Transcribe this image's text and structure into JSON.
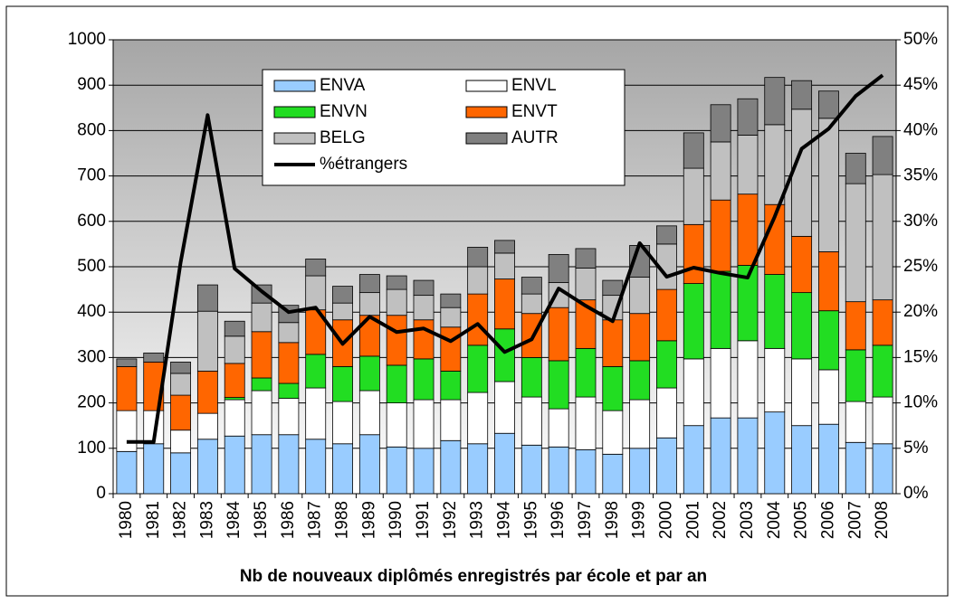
{
  "chart_data": {
    "type": "bar",
    "stacked": true,
    "x_axis_label": "Nb de nouveaux diplômés enregistrés par école et par an",
    "categories": [
      "1980",
      "1981",
      "1982",
      "1983",
      "1984",
      "1985",
      "1986",
      "1987",
      "1988",
      "1989",
      "1990",
      "1991",
      "1992",
      "1993",
      "1994",
      "1995",
      "1996",
      "1997",
      "1998",
      "1999",
      "2000",
      "2001",
      "2002",
      "2003",
      "2004",
      "2005",
      "2006",
      "2007",
      "2008"
    ],
    "series": [
      {
        "name": "ENVA",
        "color": "#99ccff",
        "values": [
          93,
          110,
          90,
          120,
          127,
          130,
          130,
          120,
          110,
          130,
          103,
          100,
          117,
          110,
          133,
          107,
          103,
          97,
          87,
          100,
          123,
          150,
          167,
          167,
          180,
          150,
          153,
          113,
          110
        ]
      },
      {
        "name": "ENVL",
        "color": "#ffffff",
        "values": [
          90,
          73,
          50,
          57,
          80,
          97,
          80,
          113,
          93,
          97,
          97,
          107,
          90,
          113,
          114,
          106,
          84,
          116,
          96,
          107,
          110,
          147,
          153,
          170,
          140,
          147,
          120,
          90,
          103
        ]
      },
      {
        "name": "ENVN",
        "color": "#22dd22",
        "values": [
          0,
          0,
          0,
          0,
          5,
          28,
          33,
          74,
          77,
          76,
          83,
          90,
          63,
          104,
          116,
          87,
          106,
          107,
          97,
          86,
          104,
          166,
          170,
          166,
          163,
          146,
          130,
          114,
          114
        ]
      },
      {
        "name": "ENVT",
        "color": "#ff6600",
        "values": [
          97,
          107,
          77,
          93,
          75,
          102,
          90,
          98,
          103,
          90,
          110,
          86,
          97,
          113,
          110,
          97,
          117,
          107,
          103,
          104,
          113,
          130,
          157,
          157,
          154,
          124,
          130,
          106,
          100
        ]
      },
      {
        "name": "BELG",
        "color": "#c0c0c0",
        "values": [
          0,
          0,
          48,
          132,
          60,
          63,
          44,
          75,
          37,
          50,
          57,
          54,
          43,
          60,
          57,
          43,
          55,
          70,
          54,
          80,
          100,
          124,
          128,
          130,
          176,
          280,
          294,
          260,
          276
        ]
      },
      {
        "name": "AUTR",
        "color": "#808080",
        "values": [
          17,
          20,
          25,
          58,
          33,
          40,
          38,
          37,
          37,
          40,
          30,
          33,
          30,
          43,
          28,
          37,
          62,
          43,
          33,
          70,
          40,
          78,
          82,
          80,
          104,
          63,
          60,
          67,
          84
        ]
      },
      {
        "name": "%étrangers",
        "type": "line",
        "axis": "y2",
        "color": "#000000",
        "values": [
          5.7,
          5.7,
          25.5,
          41.7,
          24.8,
          22.3,
          20,
          20.5,
          16.5,
          19.5,
          17.8,
          18.2,
          16.8,
          18.7,
          15.6,
          17,
          22.6,
          20.7,
          19,
          27.6,
          23.9,
          24.9,
          24.3,
          23.8,
          30.5,
          38,
          40.2,
          43.8,
          46.1
        ]
      }
    ],
    "ylim": [
      0,
      1000
    ],
    "yticks": [
      0,
      100,
      200,
      300,
      400,
      500,
      600,
      700,
      800,
      900,
      1000
    ],
    "y2lim": [
      0,
      50
    ],
    "y2ticks": [
      {
        "value": 0,
        "label": "0%"
      },
      {
        "value": 5,
        "label": "5%"
      },
      {
        "value": 10,
        "label": "10%"
      },
      {
        "value": 15,
        "label": "15%"
      },
      {
        "value": 20,
        "label": "20%"
      },
      {
        "value": 25,
        "label": "25%"
      },
      {
        "value": 30,
        "label": "30%"
      },
      {
        "value": 35,
        "label": "35%"
      },
      {
        "value": 40,
        "label": "40%"
      },
      {
        "value": 45,
        "label": "45%"
      },
      {
        "value": 50,
        "label": "50%"
      }
    ],
    "grid": true,
    "legend": "top"
  }
}
